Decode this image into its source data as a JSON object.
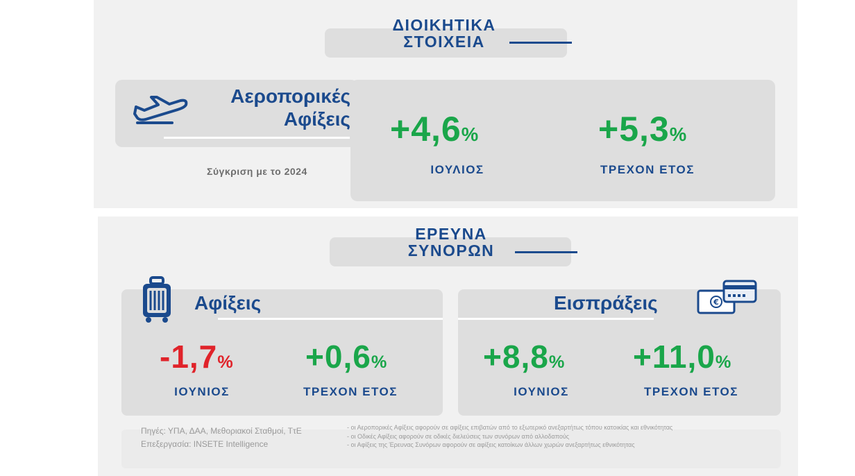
{
  "admin": {
    "header_line1": "ΔΙΟΙΚΗΤΙΚΑ",
    "header_line2": "ΣΤΟΙΧΕΙΑ",
    "air": {
      "icon": "airplane-icon",
      "title_line1": "Αεροπορικές",
      "title_line2": "Αφίξεις",
      "comparison": "Σύγκριση με το 2024",
      "month_value": "+4,6",
      "month_label": "ΙΟΥΛΙΟΣ",
      "ytd_value": "+5,3",
      "ytd_label": "ΤΡΕΧΟΝ ΕΤΟΣ",
      "pct": "%"
    }
  },
  "survey": {
    "header_line1": "ΕΡΕΥΝΑ",
    "header_line2": "ΣΥΝΟΡΩΝ",
    "arrivals": {
      "icon": "suitcase-icon",
      "title": "Αφίξεις",
      "month_value": "-1,7",
      "month_label": "ΙΟΥΝΙΟΣ",
      "ytd_value": "+0,6",
      "ytd_label": "ΤΡΕΧΟΝ ΕΤΟΣ",
      "pct": "%"
    },
    "receipts": {
      "icon": "money-card-icon",
      "title": "Εισπράξεις",
      "month_value": "+8,8",
      "month_label": "ΙΟΥΝΙΟΣ",
      "ytd_value": "+11,0",
      "ytd_label": "ΤΡΕΧΟΝ ΕΤΟΣ",
      "pct": "%"
    }
  },
  "footer": {
    "sources": "Πηγές: ΥΠΑ, ΔΑΑ, Μεθοριακοί Σταθμοί, ΤτΕ",
    "processing": "Επεξεργασία: INSETE Intelligence",
    "notes": [
      "- οι Αεροπορικές Αφίξεις αφορούν σε αφίξεις επιβατών από το εξωτερικό ανεξαρτήτως τόπου κατοικίας και εθνικότητας",
      "- οι Οδικές Αφίξεις αφορούν σε οδικές διελεύσεις των συνόρων από αλλοδαπούς",
      "- οι Αφίξεις της Έρευνας Συνόρων αφορούν σε αφίξεις κατοίκων άλλων χωρών ανεξαρτήτως εθνικότητας"
    ]
  },
  "colors": {
    "navy": "#1b4a8d",
    "positive": "#1aa64a",
    "negative": "#e0232a",
    "panel": "#f1f1f1",
    "card": "#dedede"
  }
}
